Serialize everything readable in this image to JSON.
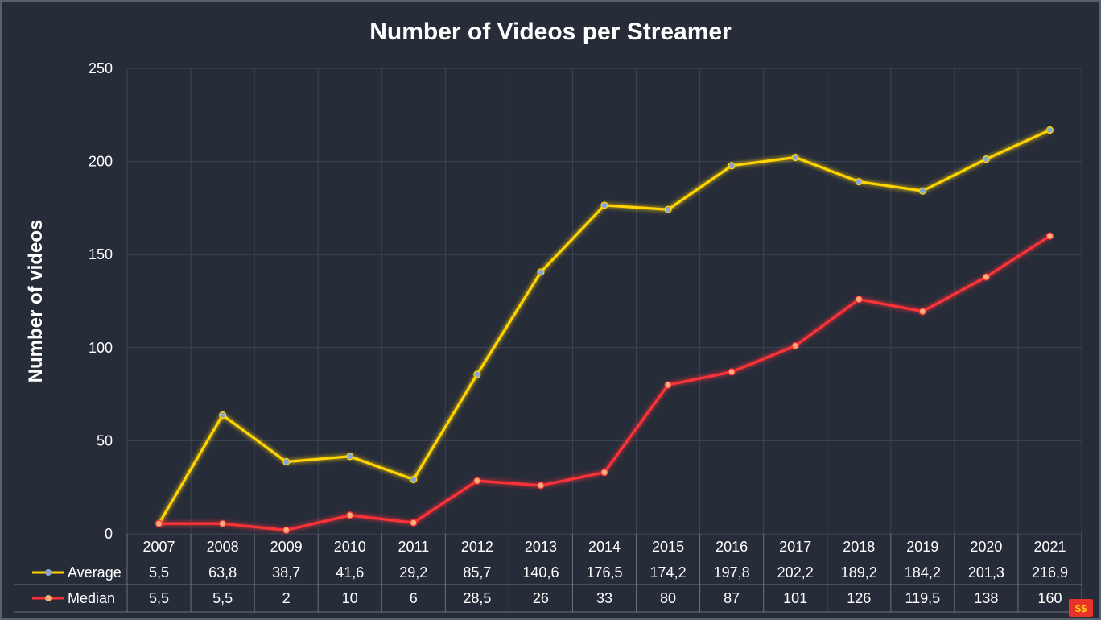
{
  "chart_data": {
    "type": "line",
    "title": "Number of Videos per Streamer",
    "ylabel": "Number of videos",
    "xlabel": "",
    "ylim": [
      0,
      250
    ],
    "yticks": [
      "0",
      "50",
      "100",
      "150",
      "200",
      "250"
    ],
    "grid": true,
    "legend": "data-table",
    "categories": [
      "2007",
      "2008",
      "2009",
      "2010",
      "2011",
      "2012",
      "2013",
      "2014",
      "2015",
      "2016",
      "2017",
      "2018",
      "2019",
      "2020",
      "2021"
    ],
    "series": [
      {
        "name": "Average",
        "color": "#ffd400",
        "marker_color": "#8aa6d8",
        "values": [
          5.5,
          63.8,
          38.7,
          41.6,
          29.2,
          85.7,
          140.6,
          176.5,
          174.2,
          197.8,
          202.2,
          189.2,
          184.2,
          201.3,
          216.9
        ],
        "labels": [
          "5,5",
          "63,8",
          "38,7",
          "41,6",
          "29,2",
          "85,7",
          "140,6",
          "176,5",
          "174,2",
          "197,8",
          "202,2",
          "189,2",
          "184,2",
          "201,3",
          "216,9"
        ]
      },
      {
        "name": "Median",
        "color": "#ff3038",
        "marker_color": "#f6b07a",
        "values": [
          5.5,
          5.5,
          2,
          10,
          6,
          28.5,
          26,
          33,
          80,
          87,
          101,
          126,
          119.5,
          138,
          160
        ],
        "labels": [
          "5,5",
          "5,5",
          "2",
          "10",
          "6",
          "28,5",
          "26",
          "33",
          "80",
          "87",
          "101",
          "126",
          "119,5",
          "138",
          "160"
        ]
      }
    ]
  },
  "logo": {
    "icon": "brand-logo-icon",
    "color": "#e8322a"
  }
}
